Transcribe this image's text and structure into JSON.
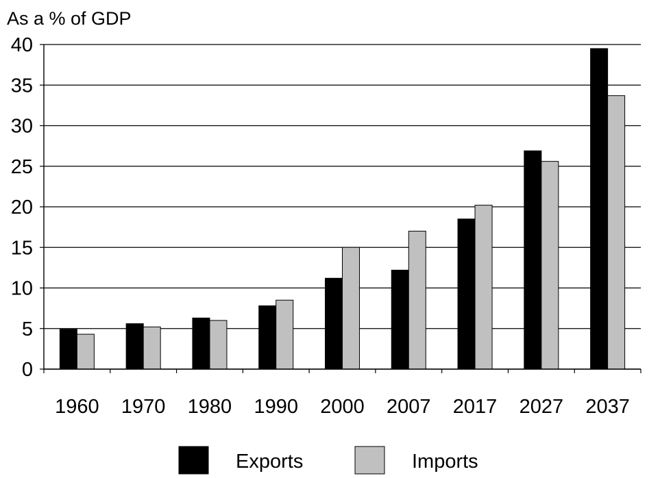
{
  "chart_data": {
    "type": "bar",
    "ylabel": "As a % of GDP",
    "xlabel": "",
    "title": "",
    "categories": [
      "1960",
      "1970",
      "1980",
      "1990",
      "2000",
      "2007",
      "2017",
      "2027",
      "2037"
    ],
    "series": [
      {
        "name": "Exports",
        "color": "#000000",
        "values": [
          4.9,
          5.6,
          6.3,
          7.8,
          11.2,
          12.2,
          18.5,
          26.9,
          39.5
        ]
      },
      {
        "name": "Imports",
        "color": "#c0c0c0",
        "values": [
          4.3,
          5.2,
          6.0,
          8.5,
          15.0,
          17.0,
          20.2,
          25.6,
          33.7
        ]
      }
    ],
    "ylim": [
      0,
      40
    ],
    "yticks": [
      0,
      5,
      10,
      15,
      20,
      25,
      30,
      35,
      40
    ],
    "grid": true,
    "legend_position": "bottom-center"
  }
}
